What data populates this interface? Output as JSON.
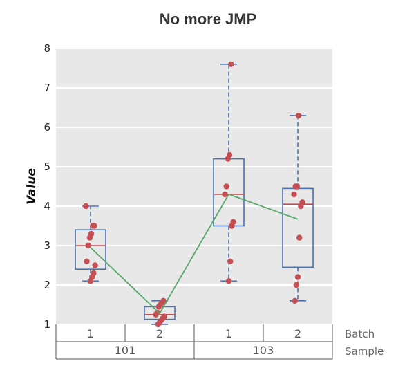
{
  "chart_data": {
    "type": "box",
    "title": "No more JMP",
    "ylabel": "Value",
    "ylim": [
      1,
      8
    ],
    "yticks": [
      1,
      2,
      3,
      4,
      5,
      6,
      7,
      8
    ],
    "grid": true,
    "background": "#e8e8e8",
    "group_levels": [
      {
        "name": "Batch",
        "labels": [
          "1",
          "2",
          "1",
          "2"
        ]
      },
      {
        "name": "Sample",
        "labels": [
          "101",
          "103"
        ]
      }
    ],
    "boxes": [
      {
        "sample": "101",
        "batch": "1",
        "q1": 2.4,
        "median": 3.0,
        "q3": 3.4,
        "whisker_low": 2.1,
        "whisker_high": 4.0,
        "mean": 2.95,
        "points": [
          4.0,
          3.5,
          3.5,
          3.3,
          3.2,
          3.0,
          2.6,
          2.5,
          2.3,
          2.2,
          2.1
        ]
      },
      {
        "sample": "101",
        "batch": "2",
        "q1": 1.13,
        "median": 1.25,
        "q3": 1.45,
        "whisker_low": 1.0,
        "whisker_high": 1.6,
        "mean": 1.28,
        "points": [
          1.6,
          1.55,
          1.5,
          1.45,
          1.3,
          1.25,
          1.2,
          1.15,
          1.1,
          1.05,
          1.0
        ]
      },
      {
        "sample": "103",
        "batch": "1",
        "q1": 3.5,
        "median": 4.3,
        "q3": 5.2,
        "whisker_low": 2.1,
        "whisker_high": 7.6,
        "mean": 4.3,
        "points": [
          7.6,
          5.3,
          5.2,
          4.5,
          4.3,
          3.6,
          3.5,
          2.6,
          2.1
        ]
      },
      {
        "sample": "103",
        "batch": "2",
        "q1": 2.45,
        "median": 4.05,
        "q3": 4.45,
        "whisker_low": 1.6,
        "whisker_high": 6.3,
        "mean": 3.67,
        "points": [
          6.3,
          4.5,
          4.5,
          4.3,
          4.1,
          4.0,
          3.2,
          2.2,
          2.0,
          1.6
        ]
      }
    ],
    "colors": {
      "box": "#4c72b0",
      "median": "#c44e52",
      "points": "#c44e52",
      "mean_line": "#55a868",
      "grid": "#ffffff",
      "group_lines": "#555555"
    }
  }
}
